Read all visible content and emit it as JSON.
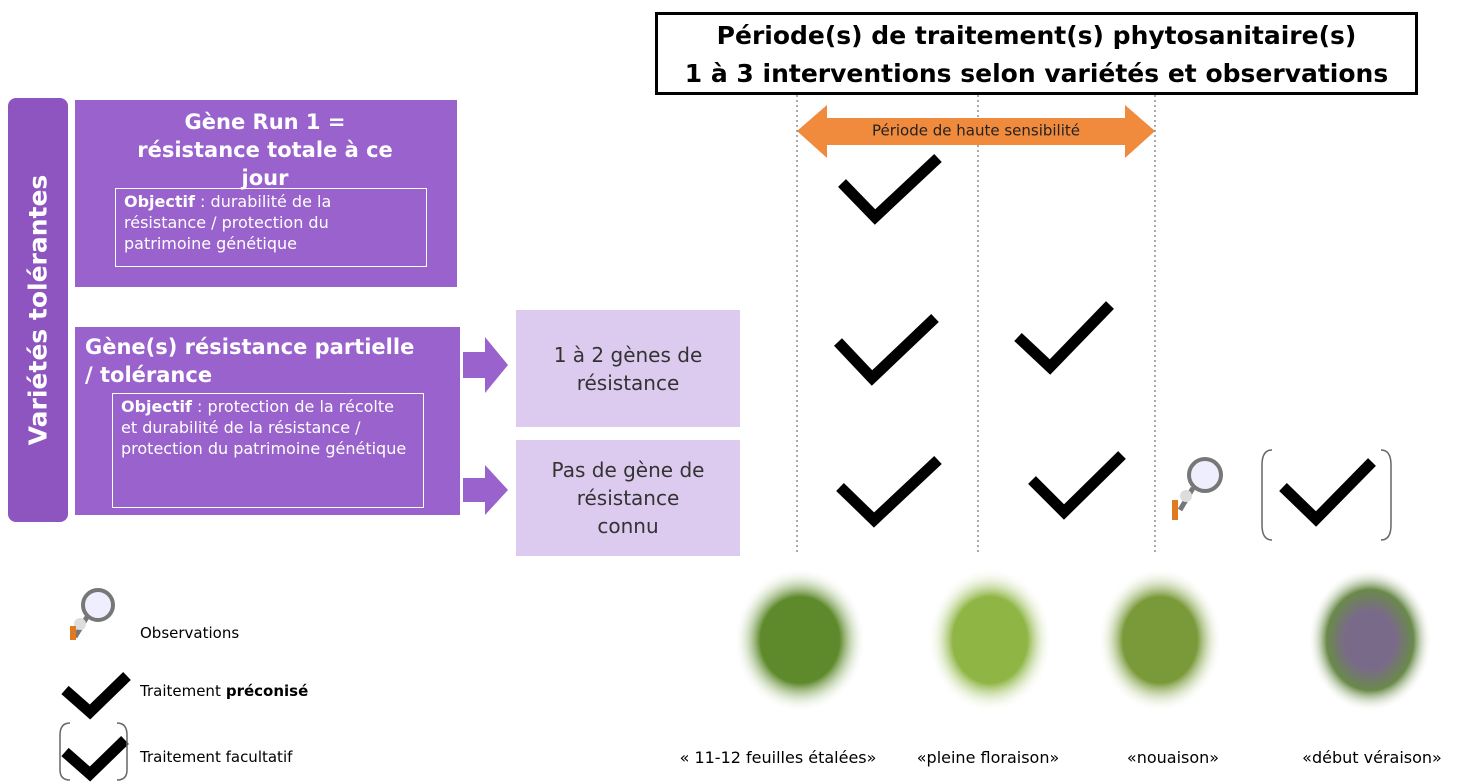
{
  "header": {
    "line1": "Période(s) de traitement(s) phytosanitaire(s)",
    "line2": "1 à 3 interventions selon variétés et observations"
  },
  "sensitivity_label": "Période de haute sensibilité",
  "side_label": "Variétés tolérantes",
  "box1": {
    "title": "Gène Run 1 = résistance totale à ce jour",
    "objective_label": "Objectif",
    "objective_text": " : durabilité de la résistance / protection du patrimoine génétique"
  },
  "box2": {
    "title": "Gène(s) résistance partielle / tolérance",
    "objective_label": "Objectif",
    "objective_text": " : protection de la récolte et durabilité de la résistance / protection du patrimoine génétique"
  },
  "sub_boxes": [
    "1 à 2 gènes de résistance",
    "Pas de gène de résistance connu"
  ],
  "legend": {
    "observations": "Observations",
    "recommended_prefix": "Traitement",
    "recommended_bold": "préconisé",
    "optional": "Traitement facultatif"
  },
  "stages": [
    "« 11-12 feuilles étalées»",
    "«pleine floraison»",
    "«nouaison»",
    "«début véraison»"
  ]
}
